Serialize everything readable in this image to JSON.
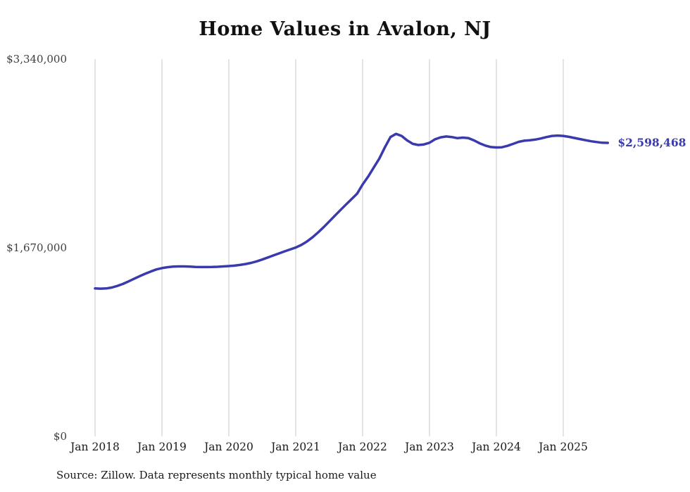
{
  "chart_data": {
    "type": "line",
    "title": "Home Values in Avalon, NJ",
    "source_note": "Source: Zillow. Data represents monthly typical home value",
    "series_name": "Monthly typical home value",
    "line_color": "#3a3aae",
    "grid": "vertical-only",
    "gridline_color": "#c9c9c9",
    "ylim": [
      0,
      3340000
    ],
    "y_ticks": [
      {
        "value": 0,
        "label": "$0"
      },
      {
        "value": 1670000,
        "label": "$1,670,000"
      },
      {
        "value": 3340000,
        "label": "$3,340,000"
      }
    ],
    "x_tick_labels": [
      "Jan 2018",
      "Jan 2019",
      "Jan 2020",
      "Jan 2021",
      "Jan 2022",
      "Jan 2023",
      "Jan 2024",
      "Jan 2025"
    ],
    "x_start_year": 2018,
    "x_step_years": 0.0833333,
    "x_unit": "month",
    "latest_value": 2598468,
    "end_label": "$2,598,468",
    "values": [
      1310000,
      1308000,
      1310000,
      1318000,
      1332000,
      1350000,
      1372000,
      1395000,
      1418000,
      1440000,
      1460000,
      1478000,
      1490000,
      1498000,
      1503000,
      1505000,
      1505000,
      1503000,
      1500000,
      1499000,
      1499000,
      1500000,
      1502000,
      1505000,
      1508000,
      1512000,
      1518000,
      1526000,
      1536000,
      1550000,
      1566000,
      1584000,
      1602000,
      1620000,
      1638000,
      1655000,
      1672000,
      1695000,
      1725000,
      1762000,
      1805000,
      1852000,
      1902000,
      1952000,
      2002000,
      2052000,
      2100000,
      2148000,
      2230000,
      2300000,
      2380000,
      2460000,
      2560000,
      2650000,
      2678000,
      2660000,
      2620000,
      2590000,
      2580000,
      2585000,
      2600000,
      2630000,
      2648000,
      2655000,
      2650000,
      2640000,
      2645000,
      2640000,
      2620000,
      2595000,
      2575000,
      2562000,
      2558000,
      2560000,
      2572000,
      2590000,
      2608000,
      2618000,
      2622000,
      2628000,
      2638000,
      2650000,
      2660000,
      2663000,
      2660000,
      2652000,
      2642000,
      2632000,
      2622000,
      2613000,
      2606000,
      2600000,
      2598468
    ]
  }
}
